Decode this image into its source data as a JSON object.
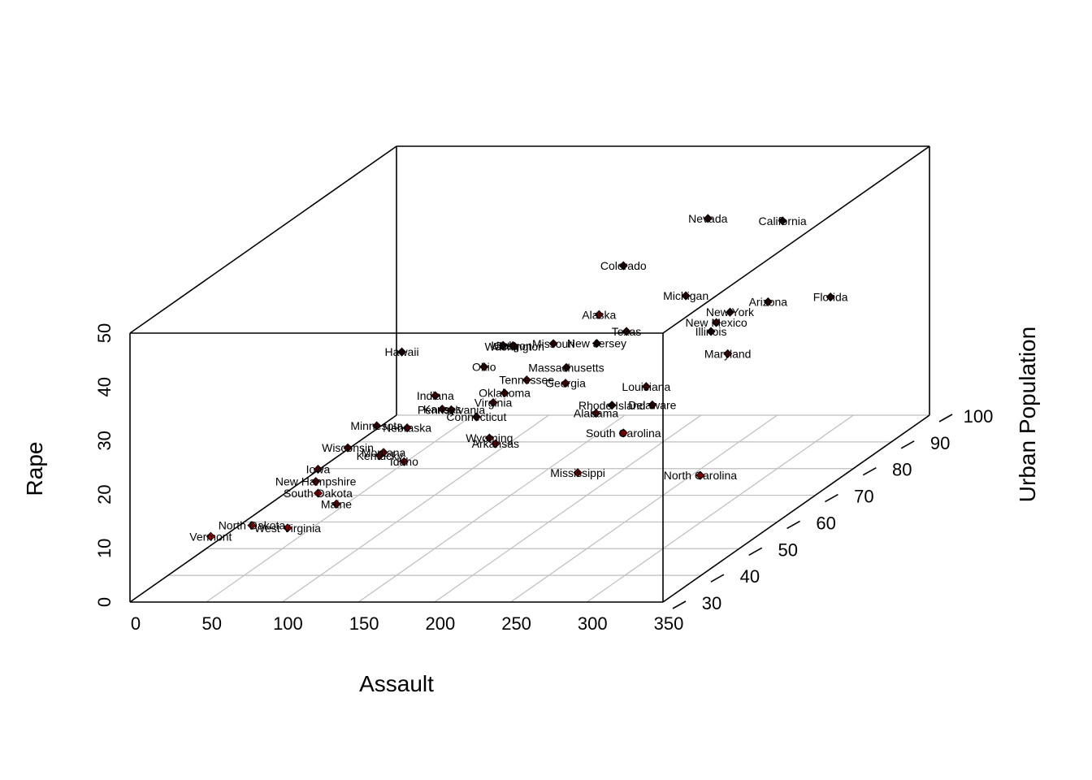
{
  "chart_data": {
    "type": "scatter3d",
    "xlabel": "Assault",
    "ylabel": "Urban Population",
    "zlabel": "Rape",
    "xlim": [
      0,
      350
    ],
    "ylim": [
      30,
      100
    ],
    "zlim": [
      0,
      50
    ],
    "x_ticks": [
      0,
      50,
      100,
      150,
      200,
      250,
      300,
      350
    ],
    "y_ticks": [
      30,
      40,
      50,
      60,
      70,
      80,
      90,
      100
    ],
    "z_ticks": [
      0,
      10,
      20,
      30,
      40,
      50
    ],
    "grid": true,
    "colors": {
      "low": "#cc0000",
      "high": "#000000",
      "box": "#000000",
      "grid": "#bebebe"
    },
    "points": [
      {
        "name": "Alabama",
        "assault": 236,
        "urbanpop": 58,
        "rape": 21.2
      },
      {
        "name": "Alaska",
        "assault": 263,
        "urbanpop": 48,
        "rape": 44.5
      },
      {
        "name": "Arizona",
        "assault": 294,
        "urbanpop": 80,
        "rape": 31.0
      },
      {
        "name": "Arkansas",
        "assault": 190,
        "urbanpop": 50,
        "rape": 19.5
      },
      {
        "name": "California",
        "assault": 276,
        "urbanpop": 91,
        "rape": 40.6
      },
      {
        "name": "Colorado",
        "assault": 204,
        "urbanpop": 78,
        "rape": 38.7
      },
      {
        "name": "Connecticut",
        "assault": 110,
        "urbanpop": 77,
        "rape": 11.1
      },
      {
        "name": "Delaware",
        "assault": 238,
        "urbanpop": 72,
        "rape": 15.8
      },
      {
        "name": "Florida",
        "assault": 335,
        "urbanpop": 80,
        "rape": 31.9
      },
      {
        "name": "Georgia",
        "assault": 211,
        "urbanpop": 60,
        "rape": 25.8
      },
      {
        "name": "Hawaii",
        "assault": 46,
        "urbanpop": 83,
        "rape": 20.2
      },
      {
        "name": "Idaho",
        "assault": 120,
        "urbanpop": 54,
        "rape": 14.2
      },
      {
        "name": "Illinois",
        "assault": 249,
        "urbanpop": 83,
        "rape": 24.0
      },
      {
        "name": "Indiana",
        "assault": 113,
        "urbanpop": 65,
        "rape": 21.0
      },
      {
        "name": "Iowa",
        "assault": 56,
        "urbanpop": 57,
        "rape": 11.3
      },
      {
        "name": "Kansas",
        "assault": 115,
        "urbanpop": 66,
        "rape": 18.0
      },
      {
        "name": "Kentucky",
        "assault": 109,
        "urbanpop": 52,
        "rape": 16.3
      },
      {
        "name": "Louisiana",
        "assault": 249,
        "urbanpop": 66,
        "rape": 22.2
      },
      {
        "name": "Maine",
        "assault": 83,
        "urbanpop": 51,
        "rape": 7.8
      },
      {
        "name": "Maryland",
        "assault": 300,
        "urbanpop": 67,
        "rape": 27.8
      },
      {
        "name": "Massachusetts",
        "assault": 149,
        "urbanpop": 85,
        "rape": 16.3
      },
      {
        "name": "Michigan",
        "assault": 255,
        "urbanpop": 74,
        "rape": 35.1
      },
      {
        "name": "Minnesota",
        "assault": 72,
        "urbanpop": 66,
        "rape": 14.9
      },
      {
        "name": "Mississippi",
        "assault": 259,
        "urbanpop": 44,
        "rape": 17.1
      },
      {
        "name": "Missouri",
        "assault": 178,
        "urbanpop": 70,
        "rape": 28.2
      },
      {
        "name": "Montana",
        "assault": 109,
        "urbanpop": 53,
        "rape": 16.4
      },
      {
        "name": "Nebraska",
        "assault": 102,
        "urbanpop": 62,
        "rape": 16.5
      },
      {
        "name": "Nevada",
        "assault": 252,
        "urbanpop": 81,
        "rape": 46.0
      },
      {
        "name": "New Hampshire",
        "assault": 57,
        "urbanpop": 56,
        "rape": 9.5
      },
      {
        "name": "New Jersey",
        "assault": 159,
        "urbanpop": 89,
        "rape": 18.8
      },
      {
        "name": "New Mexico",
        "assault": 285,
        "urbanpop": 70,
        "rape": 32.1
      },
      {
        "name": "New York",
        "assault": 254,
        "urbanpop": 86,
        "rape": 26.1
      },
      {
        "name": "North Carolina",
        "assault": 337,
        "urbanpop": 45,
        "rape": 16.1
      },
      {
        "name": "North Dakota",
        "assault": 45,
        "urbanpop": 44,
        "rape": 7.3
      },
      {
        "name": "Ohio",
        "assault": 120,
        "urbanpop": 75,
        "rape": 21.4
      },
      {
        "name": "Oklahoma",
        "assault": 151,
        "urbanpop": 68,
        "rape": 20.0
      },
      {
        "name": "Oregon",
        "assault": 159,
        "urbanpop": 67,
        "rape": 29.3
      },
      {
        "name": "Pennsylvania",
        "assault": 106,
        "urbanpop": 72,
        "rape": 14.9
      },
      {
        "name": "Rhode Island",
        "assault": 174,
        "urbanpop": 87,
        "rape": 8.3
      },
      {
        "name": "South Carolina",
        "assault": 279,
        "urbanpop": 48,
        "rape": 22.5
      },
      {
        "name": "South Dakota",
        "assault": 86,
        "urbanpop": 45,
        "rape": 12.8
      },
      {
        "name": "Tennessee",
        "assault": 188,
        "urbanpop": 59,
        "rape": 26.9
      },
      {
        "name": "Texas",
        "assault": 201,
        "urbanpop": 80,
        "rape": 25.5
      },
      {
        "name": "Utah",
        "assault": 120,
        "urbanpop": 80,
        "rape": 22.9
      },
      {
        "name": "Vermont",
        "assault": 48,
        "urbanpop": 32,
        "rape": 11.2
      },
      {
        "name": "Virginia",
        "assault": 156,
        "urbanpop": 63,
        "rape": 20.7
      },
      {
        "name": "Washington",
        "assault": 145,
        "urbanpop": 73,
        "rape": 26.2
      },
      {
        "name": "West Virginia",
        "assault": 81,
        "urbanpop": 39,
        "rape": 9.3
      },
      {
        "name": "Wisconsin",
        "assault": 53,
        "urbanpop": 66,
        "rape": 10.8
      },
      {
        "name": "Wyoming",
        "assault": 161,
        "urbanpop": 60,
        "rape": 15.6
      }
    ]
  }
}
